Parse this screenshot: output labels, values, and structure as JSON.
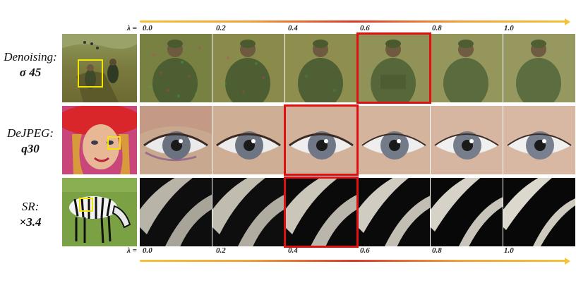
{
  "lambda_axis": {
    "prefix": "λ =",
    "values": [
      "0.0",
      "0.2",
      "0.4",
      "0.6",
      "0.8",
      "1.0"
    ]
  },
  "rows": [
    {
      "task": "Denoising:",
      "param": "σ 45",
      "selected_lambda": "0.6"
    },
    {
      "task": "DeJPEG:",
      "param": "q30",
      "selected_lambda": "0.4"
    },
    {
      "task": "SR:",
      "param": "×3.4",
      "selected_lambda": "0.4"
    }
  ],
  "colors": {
    "highlight_frame": "#e01010",
    "crop_box": "#f2e600",
    "axis_gradient_start": "#f5c23a",
    "axis_gradient_mid": "#d83a2a"
  }
}
